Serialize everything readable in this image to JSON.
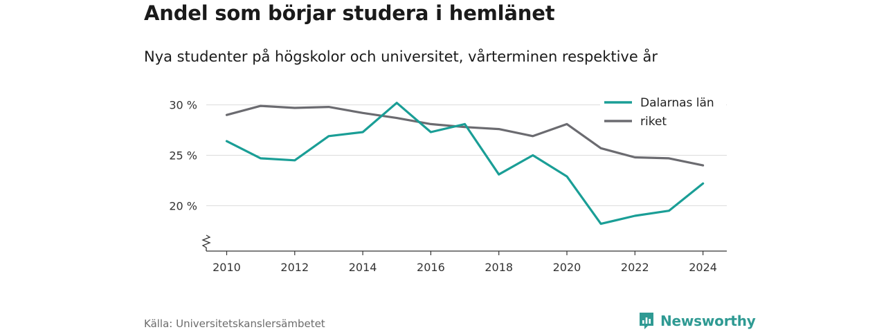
{
  "title": "Andel som börjar studera i hemlänet",
  "subtitle": "Nya studenter på högskolor och universitet, vårterminen respektive år",
  "source": "Källa: Universitetskanslersämbetet",
  "brand": {
    "name": "Newsworthy",
    "icon": "newsworthy-logo-icon",
    "color": "#2f9a93"
  },
  "chart_data": {
    "type": "line",
    "x": [
      2010,
      2011,
      2012,
      2013,
      2014,
      2015,
      2016,
      2017,
      2018,
      2019,
      2020,
      2021,
      2022,
      2023,
      2024
    ],
    "series": [
      {
        "name": "Dalarnas län",
        "color": "#1a9e96",
        "values": [
          26.4,
          24.7,
          24.5,
          26.9,
          27.3,
          30.2,
          27.3,
          28.1,
          23.1,
          25.0,
          22.9,
          18.2,
          19.0,
          19.5,
          22.2
        ]
      },
      {
        "name": "riket",
        "color": "#6b6b70",
        "values": [
          29.0,
          29.9,
          29.7,
          29.8,
          29.2,
          28.7,
          28.1,
          27.8,
          27.6,
          26.9,
          28.1,
          25.7,
          24.8,
          24.7,
          24.0
        ]
      }
    ],
    "xticks": [
      2010,
      2012,
      2014,
      2016,
      2018,
      2020,
      2022,
      2024
    ],
    "xtick_labels": [
      "2010",
      "2012",
      "2014",
      "2016",
      "2018",
      "2020",
      "2022",
      "2024"
    ],
    "yticks": [
      20,
      25,
      30
    ],
    "ytick_labels": [
      "20 %",
      "25 %",
      "30 %"
    ],
    "xlim": [
      2009.4,
      2024.7
    ],
    "ylim": [
      15.5,
      30.8
    ],
    "axis_break": true,
    "grid": "horizontal",
    "legend": "top-right",
    "xlabel": "",
    "ylabel": ""
  }
}
